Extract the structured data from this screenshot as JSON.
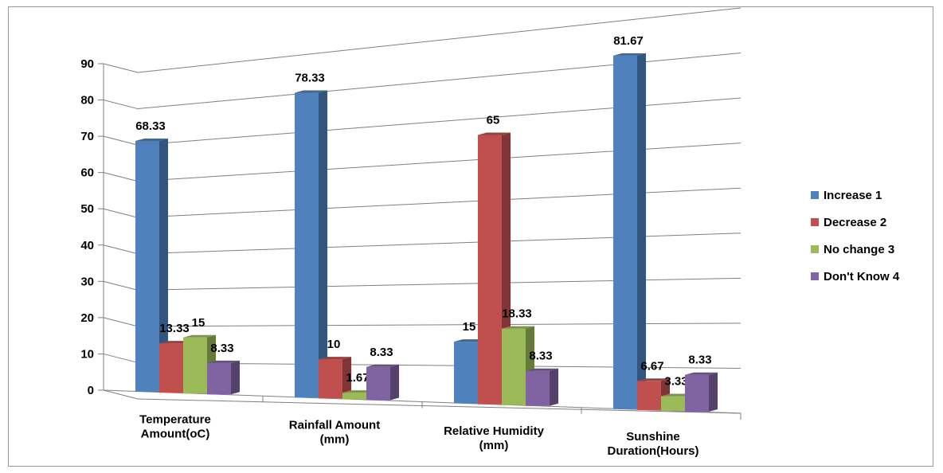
{
  "chart_data": {
    "type": "bar",
    "title": "",
    "xlabel": "",
    "ylabel": "",
    "ylim": [
      0,
      90
    ],
    "yticks": [
      0,
      10,
      20,
      30,
      40,
      50,
      60,
      70,
      80,
      90
    ],
    "grid": true,
    "legend_position": "right",
    "categories": [
      [
        "Temperature",
        "Amount(oC)"
      ],
      [
        "Rainfall Amount",
        "(mm)"
      ],
      [
        "Relative Humidity",
        "(mm)"
      ],
      [
        "Sunshine",
        "Duration(Hours)"
      ]
    ],
    "series": [
      {
        "name": "Increase 1",
        "color": "#4F81BD",
        "values": [
          68.33,
          78.33,
          15,
          81.67
        ],
        "labels": [
          "68.33",
          "78.33",
          "15",
          "81.67"
        ]
      },
      {
        "name": "Decrease 2",
        "color": "#C0504D",
        "values": [
          13.33,
          10,
          65,
          6.67
        ],
        "labels": [
          "13.33",
          "10",
          "65",
          "6.67"
        ]
      },
      {
        "name": "No change 3",
        "color": "#9BBB59",
        "values": [
          15,
          1.67,
          18.33,
          3.33
        ],
        "labels": [
          "15",
          "1.67",
          "18.33",
          "3.33"
        ]
      },
      {
        "name": "Don't Know 4",
        "color": "#8064A2",
        "values": [
          8.33,
          8.33,
          8.33,
          8.33
        ],
        "labels": [
          "8.33",
          "8.33",
          "8.33",
          "8.33"
        ]
      }
    ]
  }
}
